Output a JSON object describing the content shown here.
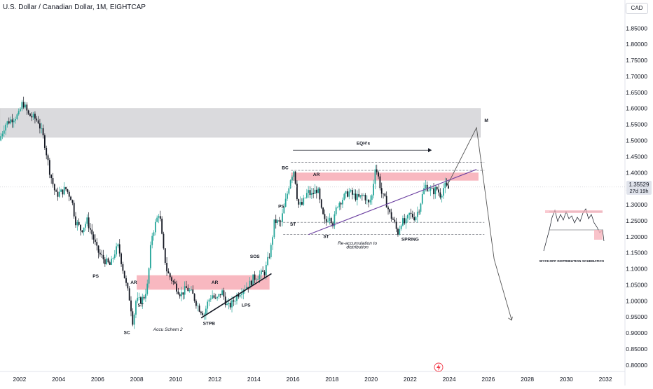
{
  "header": {
    "title": "U.S. Dollar / Canadian Dollar, 1M, EIGHTCAP",
    "currency": "CAD"
  },
  "price_badge": {
    "price": "1.35529",
    "countdown": "27d 19h"
  },
  "colors": {
    "up": "#26a69a",
    "down": "#131722",
    "zone_red": "#f8b4bd",
    "zone_grey": "#d9d9dc",
    "trendline": "#6b3fa0",
    "support": "#131722",
    "projection": "#555555"
  },
  "chart_data": {
    "type": "candlestick",
    "x_axis": {
      "min": 2001.0,
      "max": 2033.0,
      "ticks": [
        "2002",
        "2004",
        "2006",
        "2008",
        "2010",
        "2012",
        "2014",
        "2016",
        "2018",
        "2020",
        "2022",
        "2024",
        "2026",
        "2028",
        "2030",
        "2032"
      ]
    },
    "y_axis": {
      "min": 0.78,
      "max": 1.89,
      "ticks": [
        "1.85000",
        "1.80000",
        "1.75000",
        "1.70000",
        "1.65000",
        "1.60000",
        "1.55000",
        "1.50000",
        "1.45000",
        "1.40000",
        "1.35000",
        "1.30000",
        "1.25000",
        "1.20000",
        "1.15000",
        "1.10000",
        "1.05000",
        "1.00000",
        "0.95000",
        "0.90000",
        "0.85000",
        "0.80000"
      ]
    },
    "price_path": [
      [
        2001.0,
        1.5
      ],
      [
        2001.3,
        1.55
      ],
      [
        2001.7,
        1.57
      ],
      [
        2002.0,
        1.58
      ],
      [
        2002.2,
        1.62
      ],
      [
        2002.5,
        1.58
      ],
      [
        2002.8,
        1.57
      ],
      [
        2003.0,
        1.56
      ],
      [
        2003.3,
        1.5
      ],
      [
        2003.6,
        1.4
      ],
      [
        2003.9,
        1.33
      ],
      [
        2004.2,
        1.34
      ],
      [
        2004.4,
        1.35
      ],
      [
        2004.7,
        1.32
      ],
      [
        2004.9,
        1.25
      ],
      [
        2005.2,
        1.22
      ],
      [
        2005.5,
        1.25
      ],
      [
        2005.8,
        1.2
      ],
      [
        2006.0,
        1.16
      ],
      [
        2006.2,
        1.14
      ],
      [
        2006.5,
        1.12
      ],
      [
        2006.7,
        1.11
      ],
      [
        2006.9,
        1.15
      ],
      [
        2007.1,
        1.17
      ],
      [
        2007.3,
        1.11
      ],
      [
        2007.5,
        1.05
      ],
      [
        2007.7,
        1.0
      ],
      [
        2007.85,
        0.93
      ],
      [
        2008.0,
        1.0
      ],
      [
        2008.2,
        1.0
      ],
      [
        2008.4,
        1.01
      ],
      [
        2008.6,
        1.05
      ],
      [
        2008.8,
        1.2
      ],
      [
        2009.0,
        1.24
      ],
      [
        2009.2,
        1.28
      ],
      [
        2009.4,
        1.16
      ],
      [
        2009.6,
        1.09
      ],
      [
        2009.8,
        1.07
      ],
      [
        2010.0,
        1.05
      ],
      [
        2010.3,
        1.02
      ],
      [
        2010.6,
        1.04
      ],
      [
        2010.9,
        1.02
      ],
      [
        2011.2,
        0.98
      ],
      [
        2011.5,
        0.96
      ],
      [
        2011.7,
        1.0
      ],
      [
        2011.9,
        1.02
      ],
      [
        2012.1,
        1.0
      ],
      [
        2012.4,
        1.03
      ],
      [
        2012.7,
        0.98
      ],
      [
        2012.9,
        0.99
      ],
      [
        2013.2,
        1.02
      ],
      [
        2013.5,
        1.04
      ],
      [
        2013.8,
        1.05
      ],
      [
        2014.0,
        1.07
      ],
      [
        2014.3,
        1.08
      ],
      [
        2014.6,
        1.09
      ],
      [
        2014.9,
        1.16
      ],
      [
        2015.1,
        1.25
      ],
      [
        2015.4,
        1.24
      ],
      [
        2015.7,
        1.32
      ],
      [
        2015.9,
        1.38
      ],
      [
        2016.1,
        1.41
      ],
      [
        2016.3,
        1.3
      ],
      [
        2016.5,
        1.3
      ],
      [
        2016.8,
        1.34
      ],
      [
        2017.0,
        1.33
      ],
      [
        2017.3,
        1.35
      ],
      [
        2017.5,
        1.28
      ],
      [
        2017.7,
        1.24
      ],
      [
        2017.9,
        1.27
      ],
      [
        2018.1,
        1.24
      ],
      [
        2018.3,
        1.3
      ],
      [
        2018.6,
        1.32
      ],
      [
        2018.9,
        1.34
      ],
      [
        2019.1,
        1.33
      ],
      [
        2019.4,
        1.32
      ],
      [
        2019.7,
        1.33
      ],
      [
        2019.9,
        1.3
      ],
      [
        2020.1,
        1.33
      ],
      [
        2020.25,
        1.42
      ],
      [
        2020.4,
        1.39
      ],
      [
        2020.6,
        1.33
      ],
      [
        2020.8,
        1.31
      ],
      [
        2021.0,
        1.27
      ],
      [
        2021.2,
        1.25
      ],
      [
        2021.4,
        1.21
      ],
      [
        2021.6,
        1.25
      ],
      [
        2021.8,
        1.24
      ],
      [
        2022.0,
        1.27
      ],
      [
        2022.3,
        1.26
      ],
      [
        2022.5,
        1.29
      ],
      [
        2022.8,
        1.36
      ],
      [
        2023.0,
        1.35
      ],
      [
        2023.2,
        1.34
      ],
      [
        2023.4,
        1.35
      ],
      [
        2023.6,
        1.33
      ],
      [
        2023.8,
        1.36
      ],
      [
        2023.95,
        1.35
      ]
    ],
    "zones": [
      {
        "label": "",
        "x": [
          2001.0,
          2025.6
        ],
        "y": [
          1.51,
          1.6
        ],
        "color": "zone_grey"
      },
      {
        "label": "",
        "x": [
          2008.0,
          2014.8
        ],
        "y": [
          1.035,
          1.08
        ],
        "color": "zone_red"
      },
      {
        "label": "",
        "x": [
          2015.9,
          2025.5
        ],
        "y": [
          1.375,
          1.4
        ],
        "color": "zone_red"
      }
    ],
    "dashed_levels": [
      {
        "y": 1.432,
        "x": [
          2015.9,
          2025.8
        ]
      },
      {
        "y": 1.407,
        "x": [
          2015.9,
          2025.8
        ]
      },
      {
        "y": 1.245,
        "x": [
          2015.5,
          2025.8
        ]
      },
      {
        "y": 1.207,
        "x": [
          2015.5,
          2025.8
        ]
      }
    ],
    "trendlines": [
      {
        "name": "",
        "from": [
          2016.8,
          1.207
        ],
        "to": [
          2025.4,
          1.41
        ],
        "color": "trendline"
      },
      {
        "name": "",
        "from": [
          2011.3,
          0.947
        ],
        "to": [
          2014.9,
          1.085
        ],
        "color": "support"
      }
    ],
    "projection": [
      [
        2023.9,
        1.36
      ],
      [
        2025.4,
        1.54
      ],
      [
        2026.3,
        1.13
      ],
      [
        2027.2,
        0.94
      ]
    ],
    "eqh_arrow": {
      "from": [
        2016.0,
        1.47
      ],
      "to": [
        2023.1,
        1.47
      ]
    },
    "annotations": [
      {
        "text": "M",
        "x": 2025.9,
        "y": 1.558
      },
      {
        "text": "EQH's",
        "x": 2019.6,
        "y": 1.487
      },
      {
        "text": "BC",
        "x": 2015.6,
        "y": 1.41
      },
      {
        "text": "AR",
        "x": 2017.2,
        "y": 1.39
      },
      {
        "text": "PS",
        "x": 2015.4,
        "y": 1.29
      },
      {
        "text": "ST",
        "x": 2016.0,
        "y": 1.235
      },
      {
        "text": "ST",
        "x": 2017.7,
        "y": 1.196
      },
      {
        "text": "SPRING",
        "x": 2022.0,
        "y": 1.188
      },
      {
        "text": "Re-accumulation to",
        "x": 2019.3,
        "y": 1.176
      },
      {
        "text": "distribution",
        "x": 2019.3,
        "y": 1.164
      },
      {
        "text": "SOS",
        "x": 2014.05,
        "y": 1.134
      },
      {
        "text": "PS",
        "x": 2005.9,
        "y": 1.073
      },
      {
        "text": "AR",
        "x": 2007.85,
        "y": 1.053
      },
      {
        "text": "AR",
        "x": 2012.0,
        "y": 1.053
      },
      {
        "text": "ST",
        "x": 2008.2,
        "y": 0.982
      },
      {
        "text": "LPS",
        "x": 2013.6,
        "y": 0.982
      },
      {
        "text": "STPB",
        "x": 2011.7,
        "y": 0.925
      },
      {
        "text": "Accu Schem 2",
        "x": 2009.6,
        "y": 0.907
      },
      {
        "text": "SC",
        "x": 2007.5,
        "y": 0.897
      }
    ]
  },
  "inset": {
    "caption": "WYCKOFF DISTRIBUTION SCHEMATICS"
  },
  "footer": {
    "lightning_icon": "lightning-icon"
  }
}
